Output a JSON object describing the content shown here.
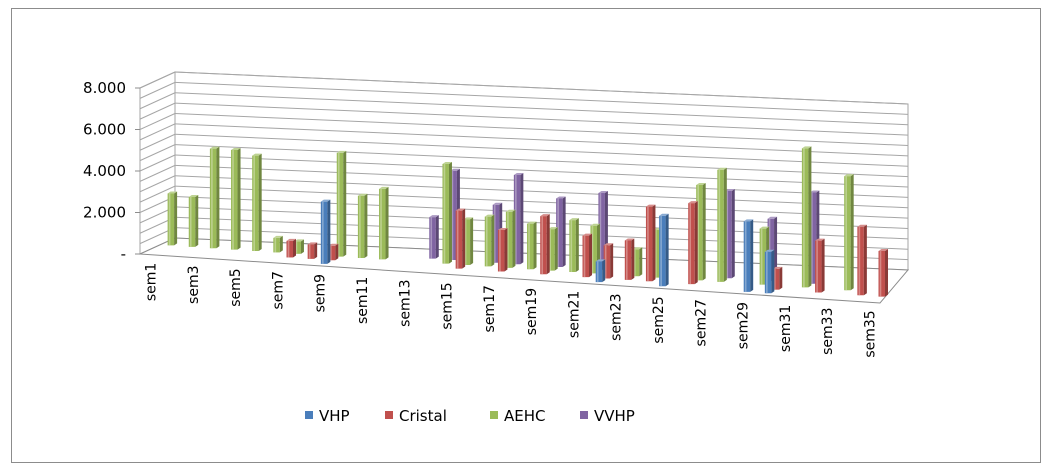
{
  "chart_data": {
    "type": "bar",
    "subtype": "3d-clustered-column",
    "title": "",
    "xlabel": "",
    "ylabel": "",
    "ylim": [
      0,
      8
    ],
    "y_ticks": [
      {
        "value": 0,
        "label": "-"
      },
      {
        "value": 2,
        "label": "2.000"
      },
      {
        "value": 4,
        "label": "4.000"
      },
      {
        "value": 6,
        "label": "6.000"
      },
      {
        "value": 8,
        "label": "8.000"
      }
    ],
    "grid": true,
    "legend_position": "bottom",
    "categories": [
      "sem1",
      "sem2",
      "sem3",
      "sem4",
      "sem5",
      "sem6",
      "sem7",
      "sem8",
      "sem9",
      "sem10",
      "sem11",
      "sem12",
      "sem13",
      "sem14",
      "sem15",
      "sem16",
      "sem17",
      "sem18",
      "sem19",
      "sem20",
      "sem21",
      "sem22",
      "sem23",
      "sem24",
      "sem25",
      "sem26",
      "sem27",
      "sem28",
      "sem29",
      "sem30",
      "sem31",
      "sem32",
      "sem33",
      "sem34",
      "sem35"
    ],
    "tick_labels": [
      "sem1",
      "sem3",
      "sem5",
      "sem7",
      "sem9",
      "sem11",
      "sem13",
      "sem15",
      "sem17",
      "sem19",
      "sem21",
      "sem23",
      "sem25",
      "sem27",
      "sem29",
      "sem31",
      "sem33",
      "sem35"
    ],
    "series": [
      {
        "name": "VHP",
        "color": "#4a7ebb",
        "values": [
          0,
          0,
          0,
          0,
          0,
          0,
          0,
          0,
          3.0,
          0,
          0,
          0,
          0,
          0,
          0,
          0,
          0,
          0,
          0,
          0,
          0,
          1.0,
          0,
          0,
          3.4,
          0,
          0,
          0,
          3.4,
          2.0,
          0,
          0,
          0,
          0,
          0
        ]
      },
      {
        "name": "Cristal",
        "color": "#c0504d",
        "values": [
          0,
          0,
          0,
          0,
          0,
          0,
          0.8,
          0.7,
          0.7,
          0,
          0,
          0,
          0,
          0,
          2.8,
          0,
          2.0,
          0,
          2.8,
          0,
          2.0,
          1.6,
          1.9,
          3.6,
          0,
          3.9,
          0,
          0,
          0,
          1.0,
          0,
          2.5,
          0,
          3.3,
          2.2
        ]
      },
      {
        "name": "AEHC",
        "color": "#9bbb59",
        "values": [
          2.5,
          2.4,
          4.8,
          4.8,
          4.6,
          0.7,
          0.6,
          0,
          5.0,
          3.0,
          3.4,
          0,
          0,
          4.8,
          2.2,
          2.4,
          2.7,
          2.2,
          2.0,
          2.5,
          2.3,
          0,
          1.3,
          2.3,
          0,
          4.6,
          5.4,
          0,
          2.7,
          0,
          6.7,
          0,
          5.5,
          0,
          0
        ]
      },
      {
        "name": "VVHP",
        "color": "#8064a2",
        "values": [
          0,
          0,
          0,
          0,
          0,
          0,
          0,
          0,
          0,
          0,
          0,
          0,
          2.0,
          4.3,
          0,
          2.8,
          4.3,
          0,
          3.3,
          0,
          3.7,
          0,
          0,
          0,
          0,
          0,
          4.2,
          0,
          3.0,
          0,
          4.4,
          0,
          0,
          0,
          0
        ]
      }
    ]
  },
  "legend": [
    {
      "label": "VHP",
      "color": "#4a7ebb"
    },
    {
      "label": "Cristal",
      "color": "#c0504d"
    },
    {
      "label": "AEHC",
      "color": "#9bbb59"
    },
    {
      "label": "VVHP",
      "color": "#8064a2"
    }
  ]
}
